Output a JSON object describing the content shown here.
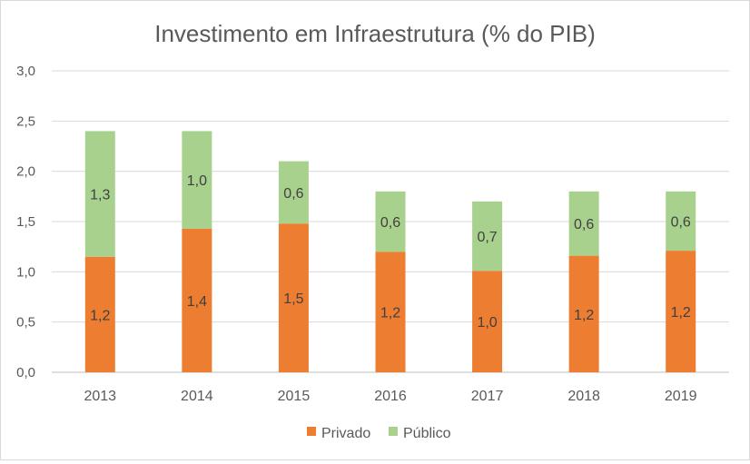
{
  "chart_data": {
    "type": "bar",
    "stacked": true,
    "title": "Investimento em Infraestrutura (% do PIB)",
    "xlabel": "",
    "ylabel": "",
    "categories": [
      "2013",
      "2014",
      "2015",
      "2016",
      "2017",
      "2018",
      "2019"
    ],
    "ylim": [
      0,
      3
    ],
    "yticks": [
      "0,0",
      "0,5",
      "1,0",
      "1,5",
      "2,0",
      "2,5",
      "3,0"
    ],
    "grid": true,
    "legend_position": "bottom",
    "series": [
      {
        "name": "Privado",
        "color": "#ed7d31",
        "values": [
          1.15,
          1.43,
          1.48,
          1.2,
          1.01,
          1.16,
          1.21
        ],
        "labels": [
          "1,2",
          "1,4",
          "1,5",
          "1,2",
          "1,0",
          "1,2",
          "1,2"
        ]
      },
      {
        "name": "Público",
        "color": "#a9d18e",
        "values": [
          1.25,
          0.97,
          0.62,
          0.6,
          0.69,
          0.64,
          0.59
        ],
        "labels": [
          "1,3",
          "1,0",
          "0,6",
          "0,6",
          "0,7",
          "0,6",
          "0,6"
        ]
      }
    ]
  }
}
